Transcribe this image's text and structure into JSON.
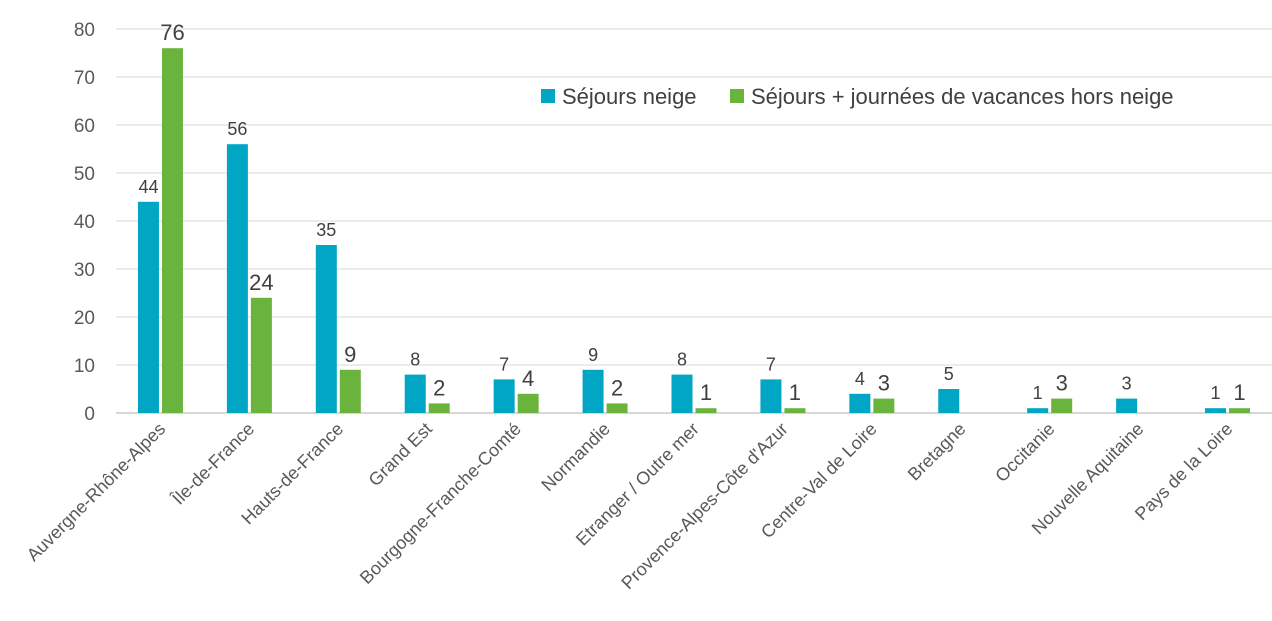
{
  "chart_data": {
    "type": "bar",
    "categories": [
      "Auvergne-Rhône-Alpes",
      "Île-de-France",
      "Hauts-de-France",
      "Grand Est",
      "Bourgogne-Franche-Comté",
      "Normandie",
      "Etranger / Outre mer",
      "Provence-Alpes-Côte d'Azur",
      "Centre-Val de Loire",
      "Bretagne",
      "Occitanie",
      "Nouvelle Aquitaine",
      "Pays de la Loire"
    ],
    "series": [
      {
        "name": "Séjours neige",
        "color": "#00A6C4",
        "values": [
          44,
          56,
          35,
          8,
          7,
          9,
          8,
          7,
          4,
          5,
          1,
          3,
          1
        ]
      },
      {
        "name": "Séjours + journées de vacances hors neige",
        "color": "#6AB43E",
        "values": [
          76,
          24,
          9,
          2,
          4,
          2,
          1,
          1,
          3,
          null,
          3,
          null,
          1
        ]
      }
    ],
    "yticks": [
      "0",
      "10",
      "20",
      "30",
      "40",
      "50",
      "60",
      "70",
      "80"
    ],
    "ylim": [
      0,
      80
    ],
    "grid": true,
    "legend": "top-right",
    "data_labels": true
  }
}
